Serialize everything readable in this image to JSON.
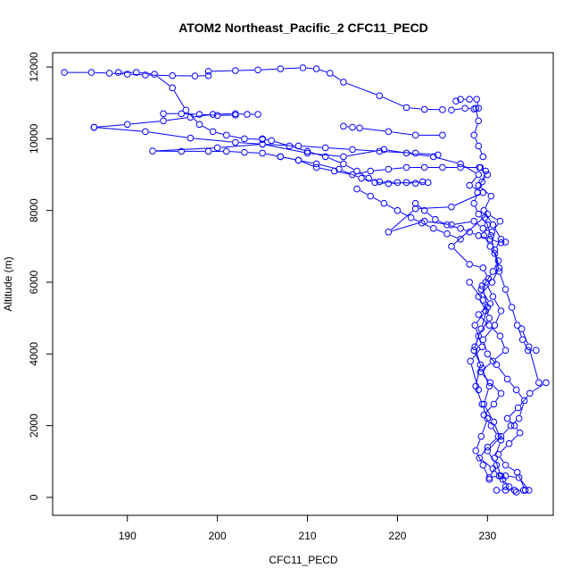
{
  "chart_data": {
    "type": "line",
    "title": "ATOM2 Northeast_Pacific_2 CFC11_PECD",
    "xlabel": "CFC11_PECD",
    "ylabel": "Altitude (m)",
    "xlim": [
      181.7,
      237.3
    ],
    "ylim": [
      -500,
      12400
    ],
    "x_ticks": [
      190,
      200,
      210,
      220,
      230
    ],
    "y_ticks": [
      0,
      2000,
      4000,
      6000,
      8000,
      10000,
      12000
    ],
    "grid": false,
    "legend": "none",
    "marker": "open-circle",
    "series_color": "#0000ff",
    "series": [
      {
        "name": "",
        "points": [
          [
            231.0,
            200
          ],
          [
            232.0,
            200
          ],
          [
            233.0,
            200
          ],
          [
            234.0,
            200
          ],
          [
            234.6,
            200
          ],
          [
            233.5,
            550
          ],
          [
            232.0,
            600
          ],
          [
            231.3,
            600
          ],
          [
            230.2,
            550
          ],
          [
            231.0,
            900
          ],
          [
            230.0,
            1300
          ],
          [
            231.5,
            1700
          ],
          [
            232.6,
            2000
          ],
          [
            233.5,
            2200
          ],
          [
            234.1,
            2700
          ],
          [
            233.2,
            3000
          ],
          [
            232.2,
            3300
          ],
          [
            231.0,
            3700
          ],
          [
            230.0,
            4000
          ],
          [
            229.5,
            4400
          ],
          [
            230.8,
            4800
          ],
          [
            231.5,
            5200
          ],
          [
            230.6,
            5600
          ],
          [
            229.8,
            6000
          ],
          [
            230.6,
            6300
          ],
          [
            231.2,
            6600
          ],
          [
            230.3,
            7000
          ],
          [
            229.6,
            7300
          ],
          [
            230.0,
            7600
          ],
          [
            229.0,
            7900
          ],
          [
            228.5,
            8200
          ],
          [
            228.9,
            8500
          ],
          [
            229.4,
            8800
          ],
          [
            229.8,
            9100
          ],
          [
            229.2,
            9200
          ],
          [
            227.0,
            9200
          ],
          [
            225.0,
            9200
          ],
          [
            223.0,
            9200
          ],
          [
            221.0,
            9200
          ],
          [
            219.0,
            9150
          ],
          [
            217.0,
            9100
          ],
          [
            215.0,
            9000
          ],
          [
            213.0,
            9100
          ],
          [
            211.0,
            9200
          ],
          [
            209.0,
            9400
          ],
          [
            207.0,
            9500
          ],
          [
            205.0,
            9600
          ],
          [
            203.0,
            9620
          ],
          [
            201.0,
            9650
          ],
          [
            199.0,
            9650
          ],
          [
            196.0,
            9650
          ],
          [
            192.8,
            9660
          ],
          [
            200.0,
            9750
          ],
          [
            205.0,
            9850
          ],
          [
            210.0,
            9600
          ],
          [
            214.0,
            9500
          ],
          [
            218.5,
            9700
          ],
          [
            221.0,
            9600
          ],
          [
            224.0,
            9500
          ],
          [
            227.0,
            9300
          ],
          [
            229.0,
            9000
          ],
          [
            228.0,
            8700
          ],
          [
            229.5,
            8500
          ],
          [
            226.0,
            8100
          ],
          [
            222.0,
            8050
          ],
          [
            219.0,
            7400
          ],
          [
            223.0,
            7700
          ],
          [
            226.0,
            7600
          ],
          [
            228.5,
            7700
          ],
          [
            229.5,
            7500
          ],
          [
            230.5,
            7400
          ],
          [
            231.4,
            7700
          ],
          [
            230.0,
            7900
          ],
          [
            226.0,
            7000
          ],
          [
            228.0,
            6500
          ],
          [
            229.5,
            6400
          ],
          [
            230.1,
            6100
          ],
          [
            229.3,
            5800
          ],
          [
            230.3,
            5400
          ],
          [
            229.0,
            5100
          ],
          [
            230.2,
            4800
          ],
          [
            231.4,
            4500
          ],
          [
            232.0,
            4100
          ],
          [
            230.6,
            3800
          ],
          [
            229.2,
            3500
          ],
          [
            230.3,
            3200
          ],
          [
            231.5,
            2900
          ],
          [
            230.7,
            2600
          ],
          [
            229.6,
            2300
          ],
          [
            230.4,
            2000
          ],
          [
            231.2,
            1700
          ],
          [
            230.0,
            1400
          ],
          [
            229.1,
            1100
          ],
          [
            230.6,
            800
          ],
          [
            231.7,
            500
          ],
          [
            232.4,
            300
          ],
          [
            233.2,
            150
          ]
        ]
      },
      {
        "name": "",
        "points": [
          [
            233.8,
            4700
          ],
          [
            234.6,
            4200
          ],
          [
            235.7,
            3200
          ],
          [
            236.5,
            3200
          ],
          [
            234.7,
            2900
          ],
          [
            233.4,
            2500
          ],
          [
            232.2,
            2200
          ],
          [
            233.0,
            2000
          ],
          [
            233.6,
            1800
          ],
          [
            232.4,
            1500
          ],
          [
            231.2,
            1200
          ],
          [
            232.0,
            900
          ],
          [
            233.3,
            700
          ],
          [
            234.2,
            200
          ]
        ]
      },
      {
        "name": "",
        "points": [
          [
            229.0,
            3000
          ],
          [
            228.1,
            3800
          ],
          [
            229.4,
            4200
          ],
          [
            228.6,
            4800
          ],
          [
            229.8,
            5200
          ],
          [
            229.0,
            5600
          ],
          [
            230.5,
            6000
          ],
          [
            231.3,
            6400
          ],
          [
            230.8,
            6900
          ],
          [
            231.5,
            7200
          ],
          [
            230.6,
            7600
          ],
          [
            229.6,
            8000
          ],
          [
            230.4,
            8400
          ],
          [
            229.0,
            8700
          ],
          [
            230.0,
            9000
          ],
          [
            229.1,
            9200
          ]
        ]
      },
      {
        "name": "",
        "points": [
          [
            183.0,
            11850
          ],
          [
            186.0,
            11850
          ],
          [
            188.0,
            11830
          ],
          [
            190.0,
            11800
          ],
          [
            192.0,
            11780
          ],
          [
            195.0,
            11760
          ],
          [
            197.5,
            11750
          ],
          [
            199.0,
            11760
          ]
        ]
      },
      {
        "name": "",
        "points": [
          [
            189.0,
            11850
          ],
          [
            191.0,
            11850
          ],
          [
            193.0,
            11800
          ],
          [
            195.0,
            11420
          ],
          [
            196.5,
            10800
          ],
          [
            198.0,
            10400
          ],
          [
            199.5,
            10200
          ],
          [
            201.0,
            10100
          ],
          [
            203.0,
            10000
          ],
          [
            205.0,
            9980
          ]
        ]
      },
      {
        "name": "",
        "points": [
          [
            199.0,
            11880
          ],
          [
            202.0,
            11900
          ],
          [
            204.5,
            11920
          ],
          [
            207.0,
            11950
          ],
          [
            209.5,
            11980
          ],
          [
            211.0,
            11950
          ],
          [
            212.5,
            11830
          ],
          [
            214.0,
            11580
          ],
          [
            218.0,
            11200
          ],
          [
            221.0,
            10870
          ],
          [
            223.0,
            10820
          ],
          [
            225.0,
            10810
          ]
        ]
      },
      {
        "name": "",
        "points": [
          [
            226.5,
            11050
          ],
          [
            227.0,
            11100
          ],
          [
            228.0,
            11100
          ],
          [
            228.8,
            11100
          ],
          [
            229.0,
            10850
          ],
          [
            228.5,
            10830
          ],
          [
            227.5,
            10850
          ],
          [
            226.0,
            10800
          ]
        ]
      },
      {
        "name": "",
        "points": [
          [
            228.7,
            10850
          ],
          [
            229.0,
            10500
          ],
          [
            228.5,
            10100
          ],
          [
            229.0,
            9800
          ],
          [
            229.5,
            9500
          ]
        ]
      },
      {
        "name": "",
        "points": [
          [
            186.3,
            10320
          ],
          [
            190.0,
            10400
          ],
          [
            194.0,
            10500
          ],
          [
            197.0,
            10600
          ],
          [
            199.5,
            10680
          ],
          [
            202.0,
            10700
          ],
          [
            203.3,
            10680
          ],
          [
            204.5,
            10680
          ]
        ]
      },
      {
        "name": "",
        "points": [
          [
            194.0,
            10700
          ],
          [
            196.0,
            10700
          ],
          [
            198.0,
            10680
          ],
          [
            200.0,
            10650
          ],
          [
            202.0,
            10660
          ]
        ]
      },
      {
        "name": "",
        "points": [
          [
            186.3,
            10320
          ],
          [
            192.0,
            10200
          ],
          [
            197.0,
            10020
          ],
          [
            202.0,
            9900
          ],
          [
            205.0,
            9850
          ],
          [
            209.0,
            9800
          ],
          [
            212.0,
            9750
          ],
          [
            215.0,
            9700
          ],
          [
            218.0,
            9650
          ],
          [
            222.0,
            9600
          ],
          [
            224.5,
            9550
          ]
        ]
      },
      {
        "name": "",
        "points": [
          [
            214.0,
            10350
          ],
          [
            215.0,
            10320
          ],
          [
            215.8,
            10300
          ],
          [
            219.0,
            10200
          ],
          [
            222.0,
            10100
          ],
          [
            225.0,
            10100
          ]
        ]
      },
      {
        "name": "",
        "points": [
          [
            205.0,
            10000
          ],
          [
            206.0,
            9950
          ],
          [
            208.0,
            9800
          ],
          [
            210.0,
            9650
          ],
          [
            212.0,
            9500
          ],
          [
            214.0,
            9300
          ],
          [
            215.5,
            9100
          ],
          [
            216.8,
            8900
          ],
          [
            218.0,
            8800
          ],
          [
            220.0,
            8780
          ],
          [
            222.0,
            8760
          ],
          [
            223.4,
            8780
          ]
        ]
      },
      {
        "name": "",
        "points": [
          [
            207.0,
            9500
          ],
          [
            209.0,
            9400
          ],
          [
            211.0,
            9300
          ],
          [
            213.5,
            9150
          ],
          [
            216.0,
            8900
          ],
          [
            217.5,
            8780
          ],
          [
            219.0,
            8750
          ],
          [
            221.0,
            8780
          ],
          [
            222.8,
            8800
          ]
        ]
      },
      {
        "name": "",
        "points": [
          [
            215.5,
            8600
          ],
          [
            217.0,
            8400
          ],
          [
            218.5,
            8200
          ],
          [
            220.0,
            8000
          ],
          [
            221.5,
            7800
          ],
          [
            222.7,
            7650
          ],
          [
            224.0,
            7500
          ],
          [
            225.5,
            7350
          ],
          [
            227.0,
            7200
          ]
        ]
      },
      {
        "name": "",
        "points": [
          [
            222.0,
            8200
          ],
          [
            223.0,
            8000
          ],
          [
            224.2,
            7750
          ],
          [
            225.5,
            7600
          ],
          [
            227.0,
            7500
          ],
          [
            228.0,
            7400
          ],
          [
            229.0,
            7300
          ],
          [
            230.3,
            7200
          ],
          [
            231.5,
            7100
          ],
          [
            232.0,
            7120
          ]
        ]
      },
      {
        "name": "",
        "points": [
          [
            228.0,
            6000
          ],
          [
            229.5,
            5500
          ],
          [
            230.2,
            5000
          ],
          [
            229.0,
            4500
          ],
          [
            228.5,
            4100
          ],
          [
            229.4,
            3600
          ],
          [
            230.2,
            3100
          ],
          [
            229.6,
            2600
          ],
          [
            230.7,
            2100
          ],
          [
            231.5,
            1600
          ],
          [
            230.8,
            1100
          ],
          [
            231.5,
            600
          ],
          [
            232.0,
            300
          ]
        ]
      },
      {
        "name": "",
        "points": [
          [
            229.7,
            7800
          ],
          [
            230.4,
            7300
          ],
          [
            230.8,
            6800
          ],
          [
            231.3,
            6300
          ],
          [
            232.0,
            5800
          ],
          [
            232.7,
            5300
          ],
          [
            233.3,
            4800
          ],
          [
            233.9,
            4400
          ],
          [
            234.5,
            4100
          ],
          [
            235.4,
            4100
          ]
        ]
      },
      {
        "name": "",
        "points": [
          [
            229.4,
            5900
          ],
          [
            230.0,
            5300
          ],
          [
            229.3,
            4700
          ],
          [
            228.6,
            4200
          ],
          [
            229.2,
            3700
          ],
          [
            228.7,
            3100
          ],
          [
            229.4,
            2600
          ],
          [
            230.0,
            2200
          ],
          [
            229.3,
            1700
          ],
          [
            228.7,
            1300
          ],
          [
            229.5,
            900
          ],
          [
            230.2,
            500
          ]
        ]
      }
    ]
  }
}
